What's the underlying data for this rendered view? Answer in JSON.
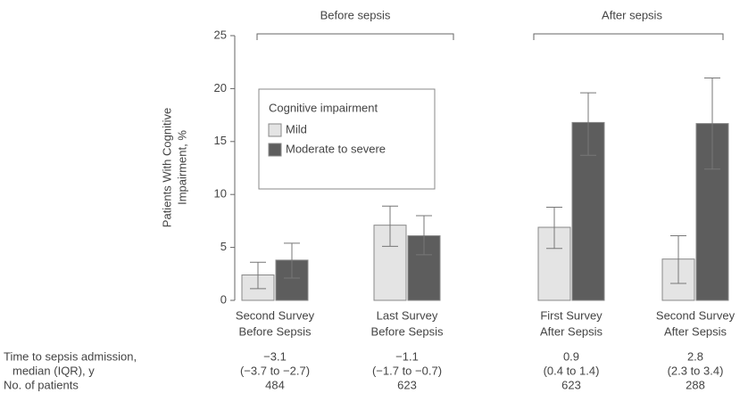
{
  "chart_data": {
    "type": "bar",
    "y_label": [
      "Patients With Cognitive",
      "Impairment, %"
    ],
    "categories": [
      [
        "Second Survey",
        "Before Sepsis"
      ],
      [
        "Last Survey",
        "Before Sepsis"
      ],
      [
        "First Survey",
        "After Sepsis"
      ],
      [
        "Second Survey",
        "After Sepsis"
      ]
    ],
    "groups": [
      "Before sepsis",
      "After sepsis"
    ],
    "series": [
      {
        "name": "Mild",
        "color": "#e4e4e4",
        "values": [
          2.4,
          7.1,
          6.9,
          3.9
        ],
        "lower": [
          1.1,
          5.1,
          4.9,
          1.6
        ],
        "upper": [
          3.6,
          8.9,
          8.8,
          6.1
        ]
      },
      {
        "name": "Moderate to severe",
        "color": "#5d5d5d",
        "values": [
          3.8,
          6.1,
          16.8,
          16.7
        ],
        "lower": [
          2.1,
          4.3,
          13.7,
          12.4
        ],
        "upper": [
          5.4,
          8.0,
          19.6,
          21.0
        ]
      }
    ],
    "legend_title": "Cognitive impairment",
    "ylim": [
      0,
      25
    ],
    "yticks": [
      0,
      5,
      10,
      15,
      20,
      25
    ],
    "table": [
      {
        "label": [
          "Time to sepsis admission,",
          "median (IQR), y"
        ],
        "values": [
          [
            "−3.1",
            "(−3.7 to −2.7)"
          ],
          [
            "−1.1",
            "(−1.7 to −0.7)"
          ],
          [
            "0.9",
            "(0.4 to 1.4)"
          ],
          [
            "2.8",
            "(2.3 to 3.4)"
          ]
        ]
      },
      {
        "label": [
          "No. of patients"
        ],
        "values": [
          [
            484
          ],
          [
            623
          ],
          [
            623
          ],
          [
            288
          ]
        ]
      }
    ]
  }
}
